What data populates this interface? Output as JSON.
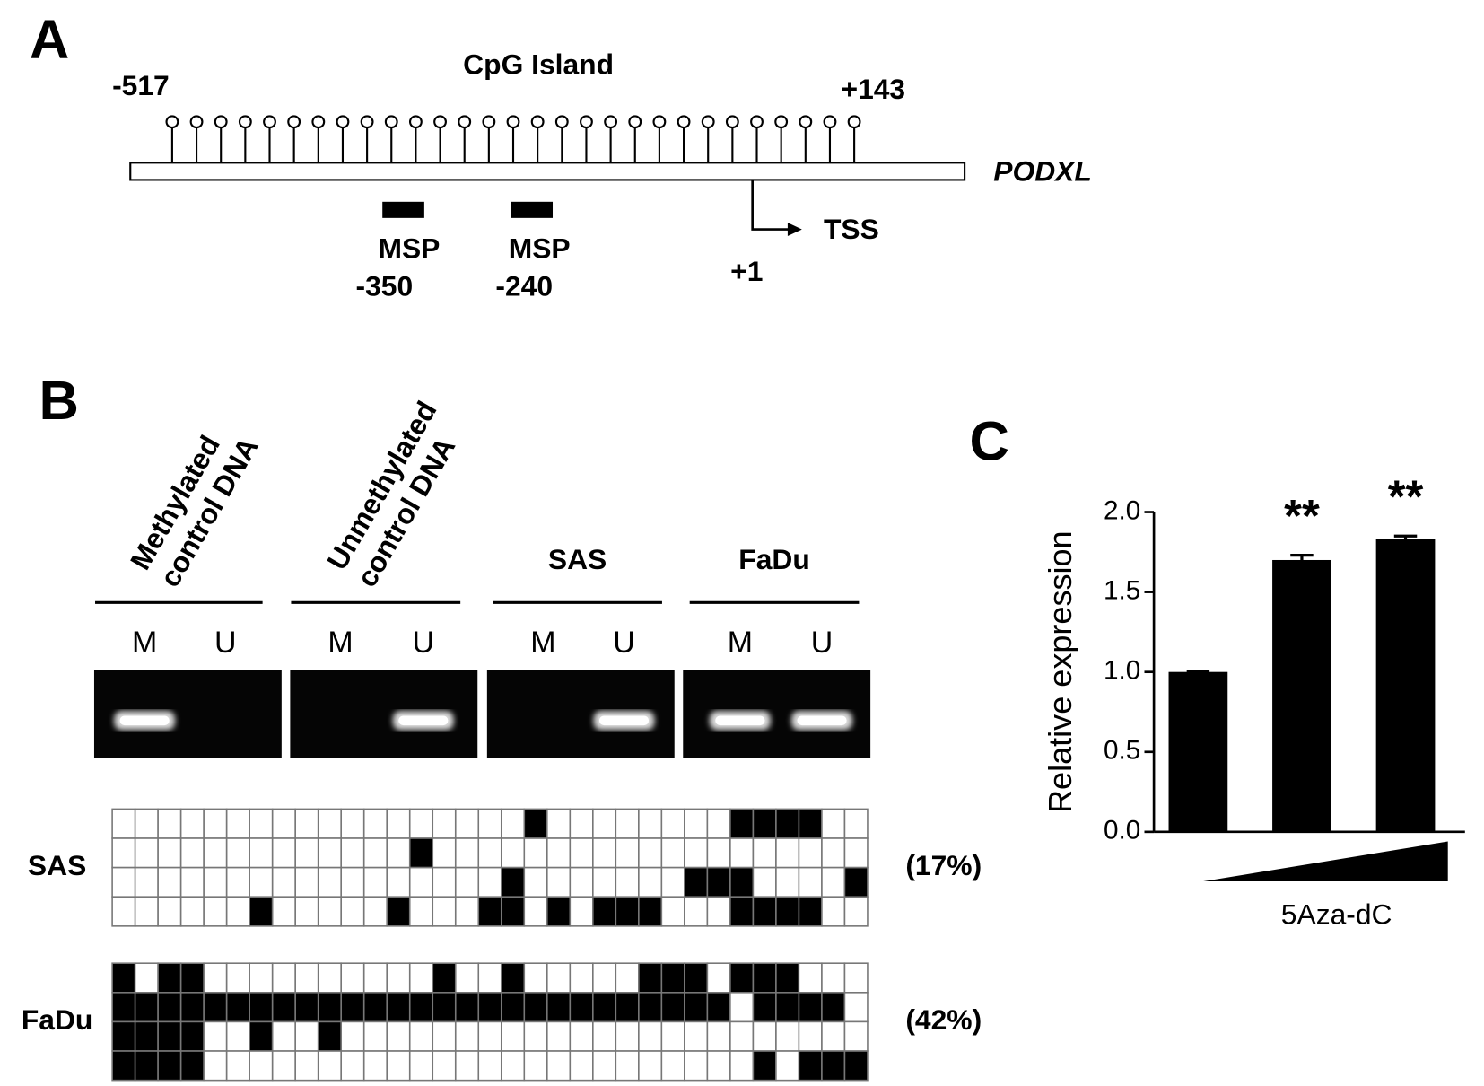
{
  "panel_a": {
    "label": "A",
    "title": "CpG Island",
    "start": "-517",
    "end": "+143",
    "gene": "PODXL",
    "primers": [
      {
        "name": "MSP",
        "position": "-350"
      },
      {
        "name": "MSP",
        "position": "-240"
      }
    ],
    "tss": "TSS",
    "tss_position": "+1"
  },
  "panel_b": {
    "label": "B",
    "columns": [
      {
        "title": [
          "Methylated",
          "control DNA"
        ],
        "lanes": [
          "M",
          "U"
        ]
      },
      {
        "title": [
          "Unmethylated",
          "control DNA"
        ],
        "lanes": [
          "M",
          "U"
        ]
      },
      {
        "title": [
          "SAS"
        ],
        "lanes": [
          "M",
          "U"
        ]
      },
      {
        "title": [
          "FaDu"
        ],
        "lanes": [
          "M",
          "U"
        ]
      }
    ],
    "samples": [
      {
        "name": "SAS",
        "percent": "(17%)",
        "rows": [
          [
            0,
            0,
            0,
            0,
            0,
            0,
            0,
            0,
            0,
            0,
            0,
            0,
            0,
            0,
            0,
            0,
            0,
            0,
            1,
            0,
            0,
            0,
            0,
            0,
            0,
            0,
            0,
            1,
            1,
            1,
            1,
            0,
            0
          ],
          [
            0,
            0,
            0,
            0,
            0,
            0,
            0,
            0,
            0,
            0,
            0,
            0,
            0,
            1,
            0,
            0,
            0,
            0,
            0,
            0,
            0,
            0,
            0,
            0,
            0,
            0,
            0,
            0,
            0,
            0,
            0,
            0,
            0
          ],
          [
            0,
            0,
            0,
            0,
            0,
            0,
            0,
            0,
            0,
            0,
            0,
            0,
            0,
            0,
            0,
            0,
            0,
            1,
            0,
            0,
            0,
            0,
            0,
            0,
            0,
            1,
            1,
            1,
            0,
            0,
            0,
            0,
            1
          ],
          [
            0,
            0,
            0,
            0,
            0,
            0,
            1,
            0,
            0,
            0,
            0,
            0,
            1,
            0,
            0,
            0,
            1,
            1,
            0,
            1,
            0,
            1,
            1,
            1,
            0,
            0,
            0,
            1,
            1,
            1,
            1,
            0,
            0
          ]
        ]
      },
      {
        "name": "FaDu",
        "percent": "(42%)",
        "rows": [
          [
            1,
            0,
            1,
            1,
            0,
            0,
            0,
            0,
            0,
            0,
            0,
            0,
            0,
            0,
            1,
            0,
            0,
            1,
            0,
            0,
            0,
            0,
            0,
            1,
            1,
            1,
            0,
            1,
            1,
            1,
            0,
            0,
            0
          ],
          [
            1,
            1,
            1,
            1,
            1,
            1,
            1,
            1,
            1,
            1,
            1,
            1,
            1,
            1,
            1,
            1,
            1,
            1,
            1,
            1,
            1,
            1,
            1,
            1,
            1,
            1,
            1,
            0,
            1,
            1,
            1,
            1,
            0
          ],
          [
            1,
            1,
            1,
            1,
            0,
            0,
            1,
            0,
            0,
            1,
            0,
            0,
            0,
            0,
            0,
            0,
            0,
            0,
            0,
            0,
            0,
            0,
            0,
            0,
            0,
            0,
            0,
            0,
            0,
            0,
            0,
            0,
            0
          ],
          [
            1,
            1,
            1,
            1,
            0,
            0,
            0,
            0,
            0,
            0,
            0,
            0,
            0,
            0,
            0,
            0,
            0,
            0,
            0,
            0,
            0,
            0,
            0,
            0,
            0,
            0,
            0,
            0,
            1,
            0,
            1,
            1,
            1
          ]
        ]
      }
    ]
  },
  "chart_data": {
    "type": "bar",
    "panel_label": "C",
    "ylabel": "Relative expression",
    "xlabel": "5Aza-dC",
    "categories": [
      null,
      null,
      null
    ],
    "values": [
      1.0,
      1.7,
      1.83
    ],
    "errors": [
      0.005,
      0.03,
      0.02
    ],
    "annotations": [
      null,
      "**",
      "**"
    ],
    "color": "#000000",
    "ylim": [
      0,
      2
    ],
    "yticks": [
      {
        "value": 0,
        "label": "0.0"
      },
      {
        "value": 0.5,
        "label": "0.5"
      },
      {
        "value": 1,
        "label": "1.0"
      },
      {
        "value": 1.5,
        "label": "1.5"
      },
      {
        "value": 2,
        "label": "2.0"
      }
    ]
  }
}
